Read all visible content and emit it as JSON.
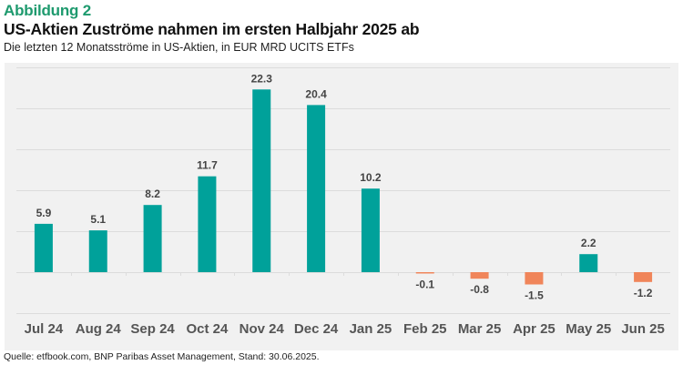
{
  "header": {
    "figure_label": "Abbildung 2",
    "title": "US-Aktien Zuströme nahmen im ersten Halbjahr 2025 ab",
    "subtitle": "Die letzten 12 Monatsströme in US-Aktien, in EUR MRD UCITS ETFs"
  },
  "footer": {
    "source": "Quelle: etfbook.com, BNP Paribas Asset Management, Stand: 30.06.2025."
  },
  "colors": {
    "positive": "#00a19a",
    "negative": "#f0855a",
    "label_green": "#1e9a6e",
    "plot_background": "#f1f1f1",
    "grid": "#dcdcdc"
  },
  "chart_data": {
    "type": "bar",
    "title": "US-Aktien Zuströme nahmen im ersten Halbjahr 2025 ab",
    "subtitle": "Die letzten 12 Monatsströme in US-Aktien, in EUR MRD UCITS ETFs",
    "xlabel": "",
    "ylabel": "",
    "categories": [
      "Jul 24",
      "Aug 24",
      "Sep 24",
      "Oct 24",
      "Nov 24",
      "Dec 24",
      "Jan 25",
      "Feb 25",
      "Mar 25",
      "Apr 25",
      "May 25",
      "Jun 25"
    ],
    "values": [
      5.9,
      5.1,
      8.2,
      11.7,
      22.3,
      20.4,
      10.2,
      -0.1,
      -0.8,
      -1.5,
      2.2,
      -1.2
    ],
    "data_labels": [
      "5.9",
      "5.1",
      "8.2",
      "11.7",
      "22.3",
      "20.4",
      "10.2",
      "-0.1",
      "-0.8",
      "-1.5",
      "2.2",
      "-1.2"
    ],
    "ylim": [
      -5,
      25
    ],
    "gridlines": [
      -5,
      0,
      5,
      10,
      15,
      20,
      25
    ],
    "y_tick_labels_shown": false,
    "grid": true,
    "legend": "none"
  }
}
